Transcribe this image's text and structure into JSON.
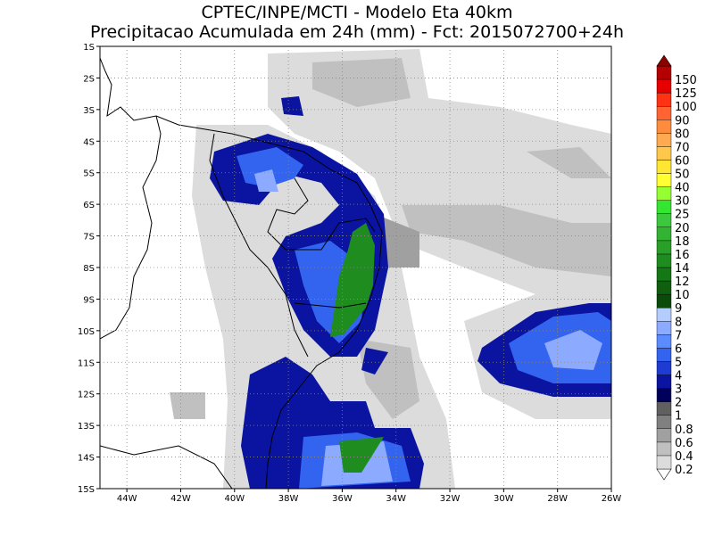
{
  "title": [
    "CPTEC/INPE/MCTI - Modelo Eta 40km",
    "Precipitacao Acumulada em 24h (mm) - Fct: 2015072700+24h"
  ],
  "axes": {
    "x_labels": [
      "44W",
      "42W",
      "40W",
      "38W",
      "36W",
      "34W",
      "32W",
      "30W",
      "28W",
      "26W"
    ],
    "y_labels": [
      "1S",
      "2S",
      "3S",
      "4S",
      "5S",
      "6S",
      "7S",
      "8S",
      "9S",
      "10S",
      "11S",
      "12S",
      "13S",
      "14S",
      "15S"
    ]
  },
  "colorbar": {
    "labels": [
      "0.2",
      "0.4",
      "0.6",
      "0.8",
      "1",
      "2",
      "3",
      "4",
      "5",
      "6",
      "7",
      "8",
      "9",
      "10",
      "12",
      "14",
      "16",
      "18",
      "20",
      "25",
      "30",
      "40",
      "50",
      "60",
      "70",
      "80",
      "90",
      "100",
      "125",
      "150"
    ],
    "colors": [
      "#ffffff",
      "#dcdcdc",
      "#c0c0c0",
      "#a0a0a0",
      "#808080",
      "#606060",
      "#00005a",
      "#0a14a0",
      "#1e3cd2",
      "#3264f0",
      "#5a8cff",
      "#8caaff",
      "#b4cdff",
      "#0a4a0a",
      "#0f5f0f",
      "#147814",
      "#1e8c1e",
      "#28a028",
      "#32b432",
      "#3cc83c",
      "#32e632",
      "#96ff32",
      "#ffff32",
      "#ffe632",
      "#ffc84b",
      "#ffaa50",
      "#ff8c3c",
      "#ff6432",
      "#ff3214",
      "#e60000",
      "#b40000",
      "#8c0000"
    ]
  }
}
